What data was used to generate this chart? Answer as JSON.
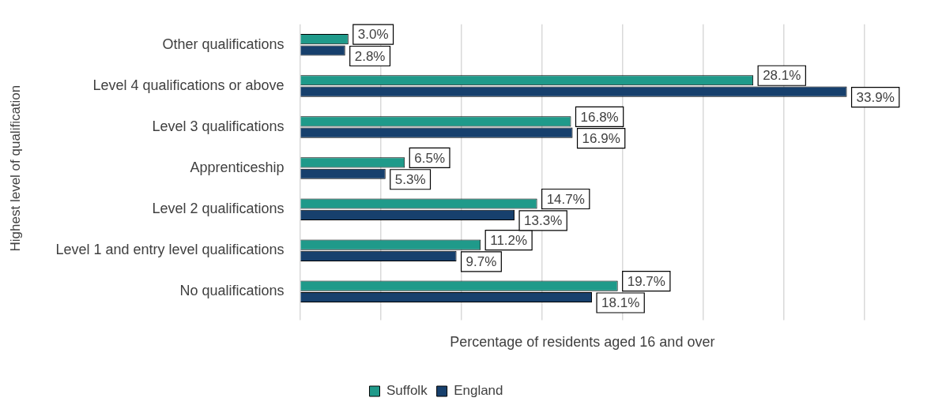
{
  "chart_data": {
    "type": "bar",
    "orientation": "horizontal",
    "xlabel": "Percentage of residents aged 16 and over",
    "ylabel": "Highest level of qualification",
    "categories": [
      "Other qualifications",
      "Level 4 qualifications or above",
      "Level 3 qualifications",
      "Apprenticeship",
      "Level 2 qualifications",
      "Level 1 and entry level qualifications",
      "No qualifications"
    ],
    "series": [
      {
        "name": "Suffolk",
        "color": "#1f9a8a",
        "values": [
          3.0,
          28.1,
          16.8,
          6.5,
          14.7,
          11.2,
          19.7
        ],
        "value_labels": [
          "3.0%",
          "28.1%",
          "16.8%",
          "6.5%",
          "14.7%",
          "11.2%",
          "19.7%"
        ]
      },
      {
        "name": "England",
        "color": "#17406d",
        "values": [
          2.8,
          33.9,
          16.9,
          5.3,
          13.3,
          9.7,
          18.1
        ],
        "value_labels": [
          "2.8%",
          "33.9%",
          "16.9%",
          "5.3%",
          "13.3%",
          "9.7%",
          "18.1%"
        ]
      }
    ],
    "xlim": [
      0,
      35
    ],
    "tick_labels": "y",
    "grid": "x",
    "legend": "bottom"
  }
}
